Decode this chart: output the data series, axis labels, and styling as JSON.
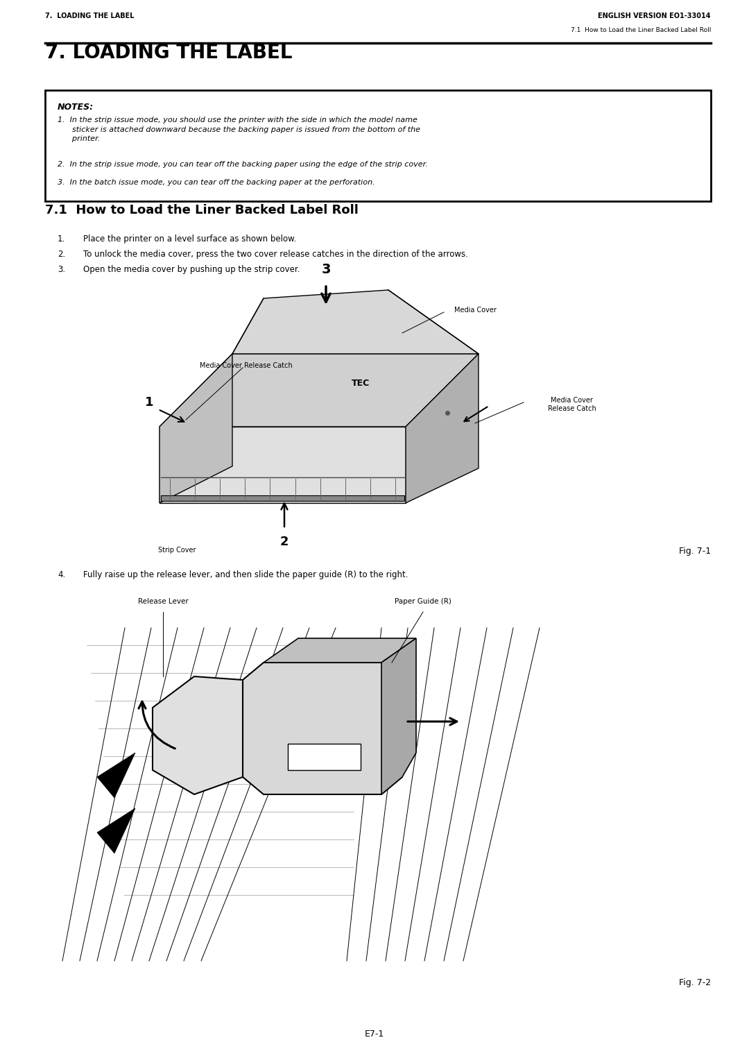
{
  "page_width": 10.8,
  "page_height": 15.25,
  "bg_color": "#ffffff",
  "header_left": "7.  LOADING THE LABEL",
  "header_right": "ENGLISH VERSION EO1-33014",
  "header_sub_right": "7.1  How to Load the Liner Backed Label Roll",
  "main_title": "7. LOADING THE LABEL",
  "notes_title": "NOTES:",
  "note1": "In the strip issue mode, you should use the printer with the side in which the model name\n      sticker is attached downward because the backing paper is issued from the bottom of the\n      printer.",
  "note2": "In the strip issue mode, you can tear off the backing paper using the edge of the strip cover.",
  "note3": "In the batch issue mode, you can tear off the backing paper at the perforation.",
  "section_title": "7.1  How to Load the Liner Backed Label Roll",
  "step1": "Place the printer on a level surface as shown below.",
  "step2": "To unlock the media cover, press the two cover release catches in the direction of the arrows.",
  "step3": "Open the media cover by pushing up the strip cover.",
  "step4": "Fully raise up the release lever, and then slide the paper guide (R) to the right.",
  "label_media_cover_release": "Media Cover Release Catch",
  "label_media_cover": "Media Cover",
  "label_media_cover_release2": "Media Cover\nRelease Catch",
  "label_strip_cover": "Strip Cover",
  "label_release_lever": "Release Lever",
  "label_paper_guide": "Paper Guide (R)",
  "fig1_caption": "Fig. 7-1",
  "fig2_caption": "Fig. 7-2",
  "page_number": "E7-1",
  "text_color": "#000000"
}
